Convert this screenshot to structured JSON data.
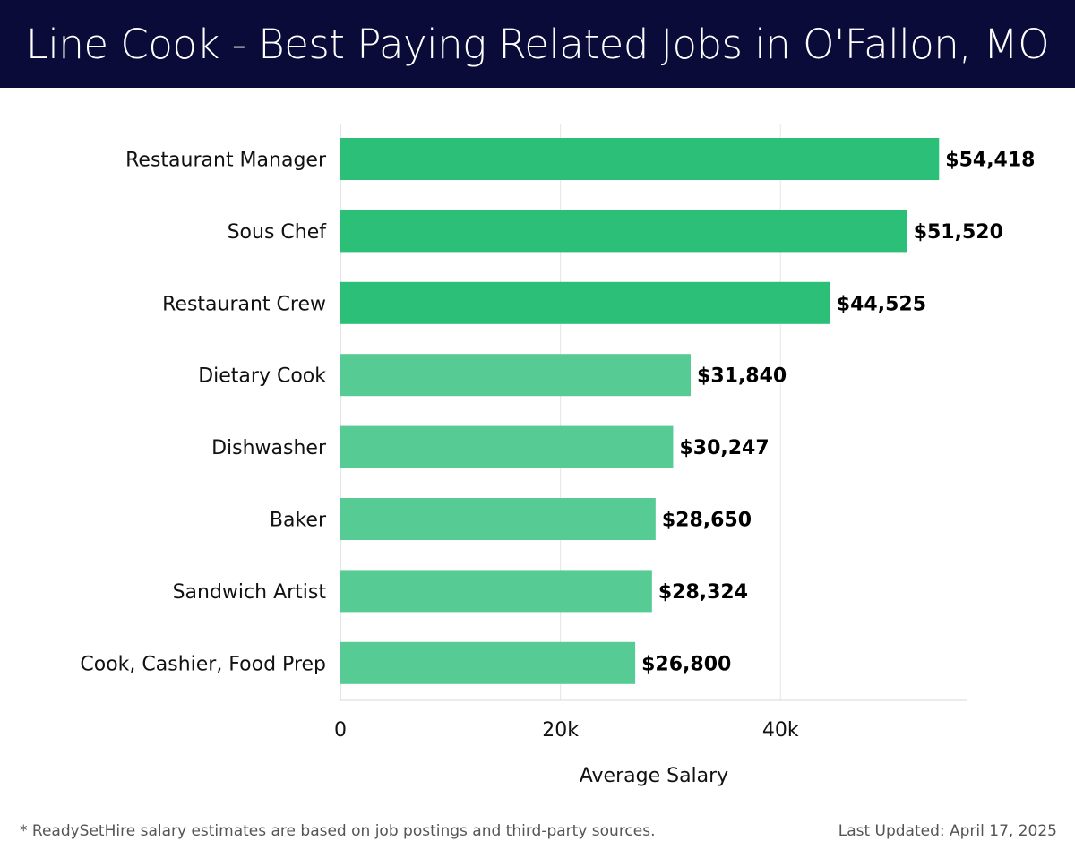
{
  "header": {
    "title": "Line Cook - Best Paying Related Jobs in O'Fallon, MO"
  },
  "footer": {
    "note": "* ReadySetHire salary estimates are based on job postings and third-party sources.",
    "updated": "Last Updated: April 17, 2025"
  },
  "colors": {
    "header_bg": "#0b0b3a",
    "bar_dark": "#2bbf78",
    "bar_light": "#56cb93"
  },
  "chart_data": {
    "type": "bar",
    "orientation": "horizontal",
    "title": "Line Cook - Best Paying Related Jobs in O'Fallon, MO",
    "xlabel": "Average Salary",
    "ylabel": "",
    "xlim": [
      0,
      57000
    ],
    "xticks": [
      0,
      20000,
      40000
    ],
    "xtick_labels": [
      "0",
      "20k",
      "40k"
    ],
    "grid": true,
    "categories": [
      "Restaurant Manager",
      "Sous Chef",
      "Restaurant Crew",
      "Dietary Cook",
      "Dishwasher",
      "Baker",
      "Sandwich Artist",
      "Cook, Cashier, Food Prep"
    ],
    "values": [
      54418,
      51520,
      44525,
      31840,
      30247,
      28650,
      28324,
      26800
    ],
    "value_labels": [
      "$54,418",
      "$51,520",
      "$44,525",
      "$31,840",
      "$30,247",
      "$28,650",
      "$28,324",
      "$26,800"
    ],
    "highlight_top": 3
  }
}
